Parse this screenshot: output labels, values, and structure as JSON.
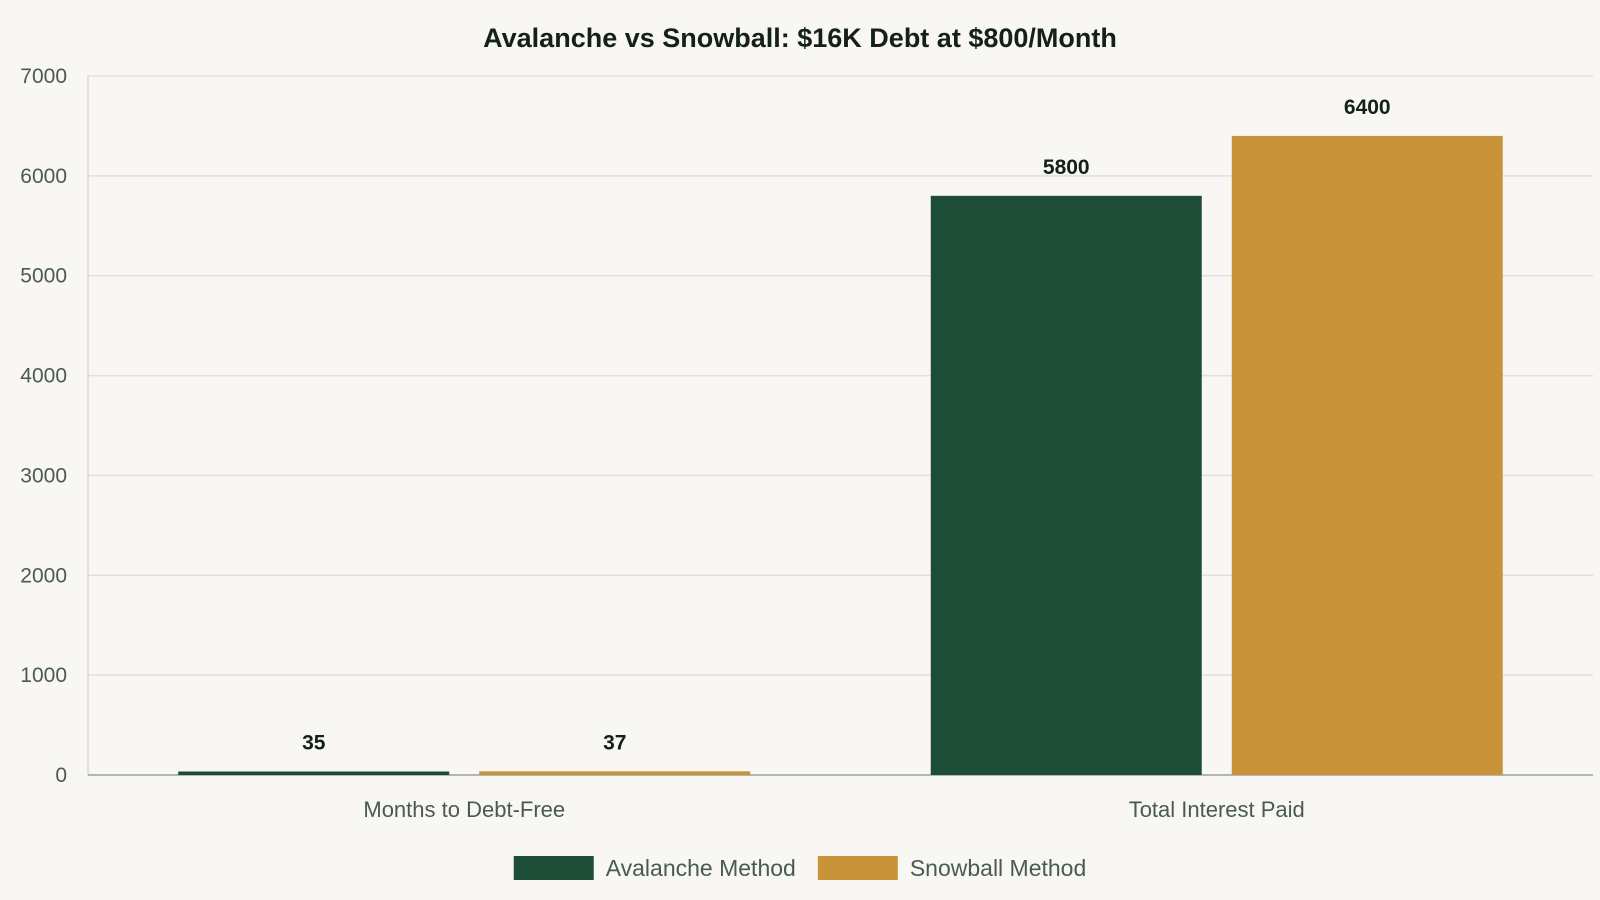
{
  "chart_data": {
    "type": "bar",
    "title": "Avalanche vs Snowball: $16K Debt at $800/Month",
    "xlabel": "",
    "ylabel": "",
    "categories": [
      "Months to Debt-Free",
      "Total Interest Paid"
    ],
    "series": [
      {
        "name": "Avalanche Method",
        "color": "#1e4d37",
        "values": [
          35,
          5800
        ]
      },
      {
        "name": "Snowball Method",
        "color": "#c9933a",
        "values": [
          37,
          6400
        ]
      }
    ],
    "ylim": [
      0,
      7000
    ],
    "yticks": [
      0,
      1000,
      2000,
      3000,
      4000,
      5000,
      6000,
      7000
    ],
    "grid": true,
    "legend_position": "bottom-center",
    "data_labels": true
  }
}
